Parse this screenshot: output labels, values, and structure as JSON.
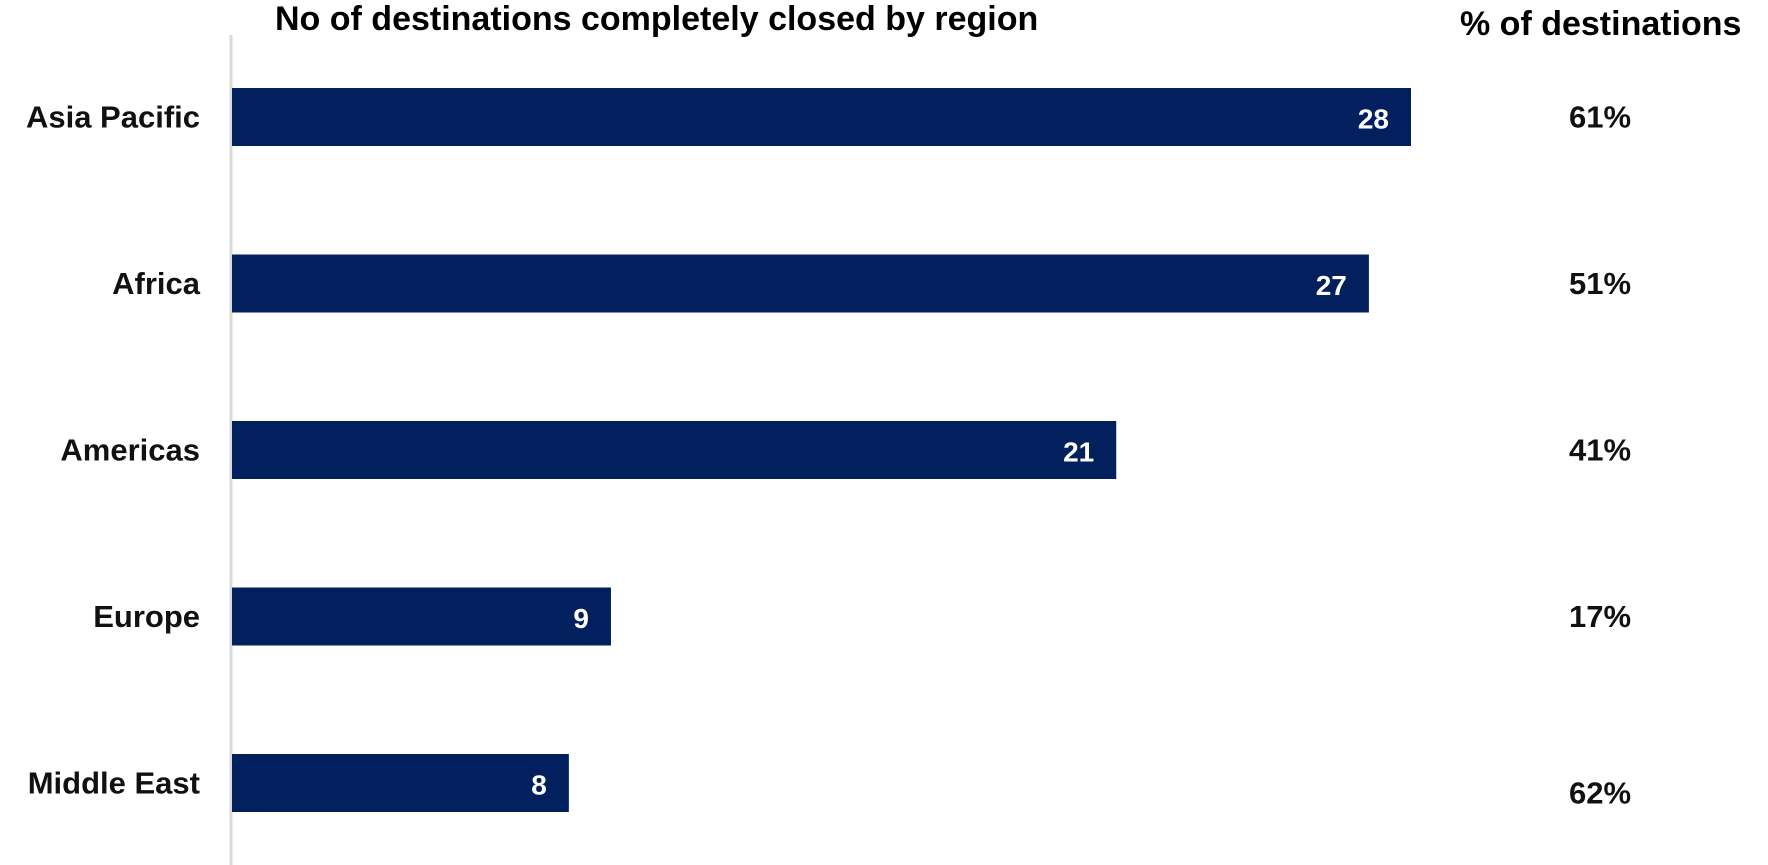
{
  "chart_data": {
    "type": "bar",
    "orientation": "horizontal",
    "title": "No of destinations completely closed by region",
    "secondary_header": "% of destinations",
    "categories": [
      "Asia Pacific",
      "Africa",
      "Americas",
      "Europe",
      "Middle East"
    ],
    "values": [
      28,
      27,
      21,
      9,
      8
    ],
    "percentages": [
      "61%",
      "51%",
      "41%",
      "17%",
      "62%"
    ],
    "xlim": [
      0,
      30
    ],
    "grid": false,
    "legend": "none",
    "colors": {
      "bar": "#03205e",
      "axis": "#d9d9d9",
      "value_label": "#ffffff"
    }
  }
}
